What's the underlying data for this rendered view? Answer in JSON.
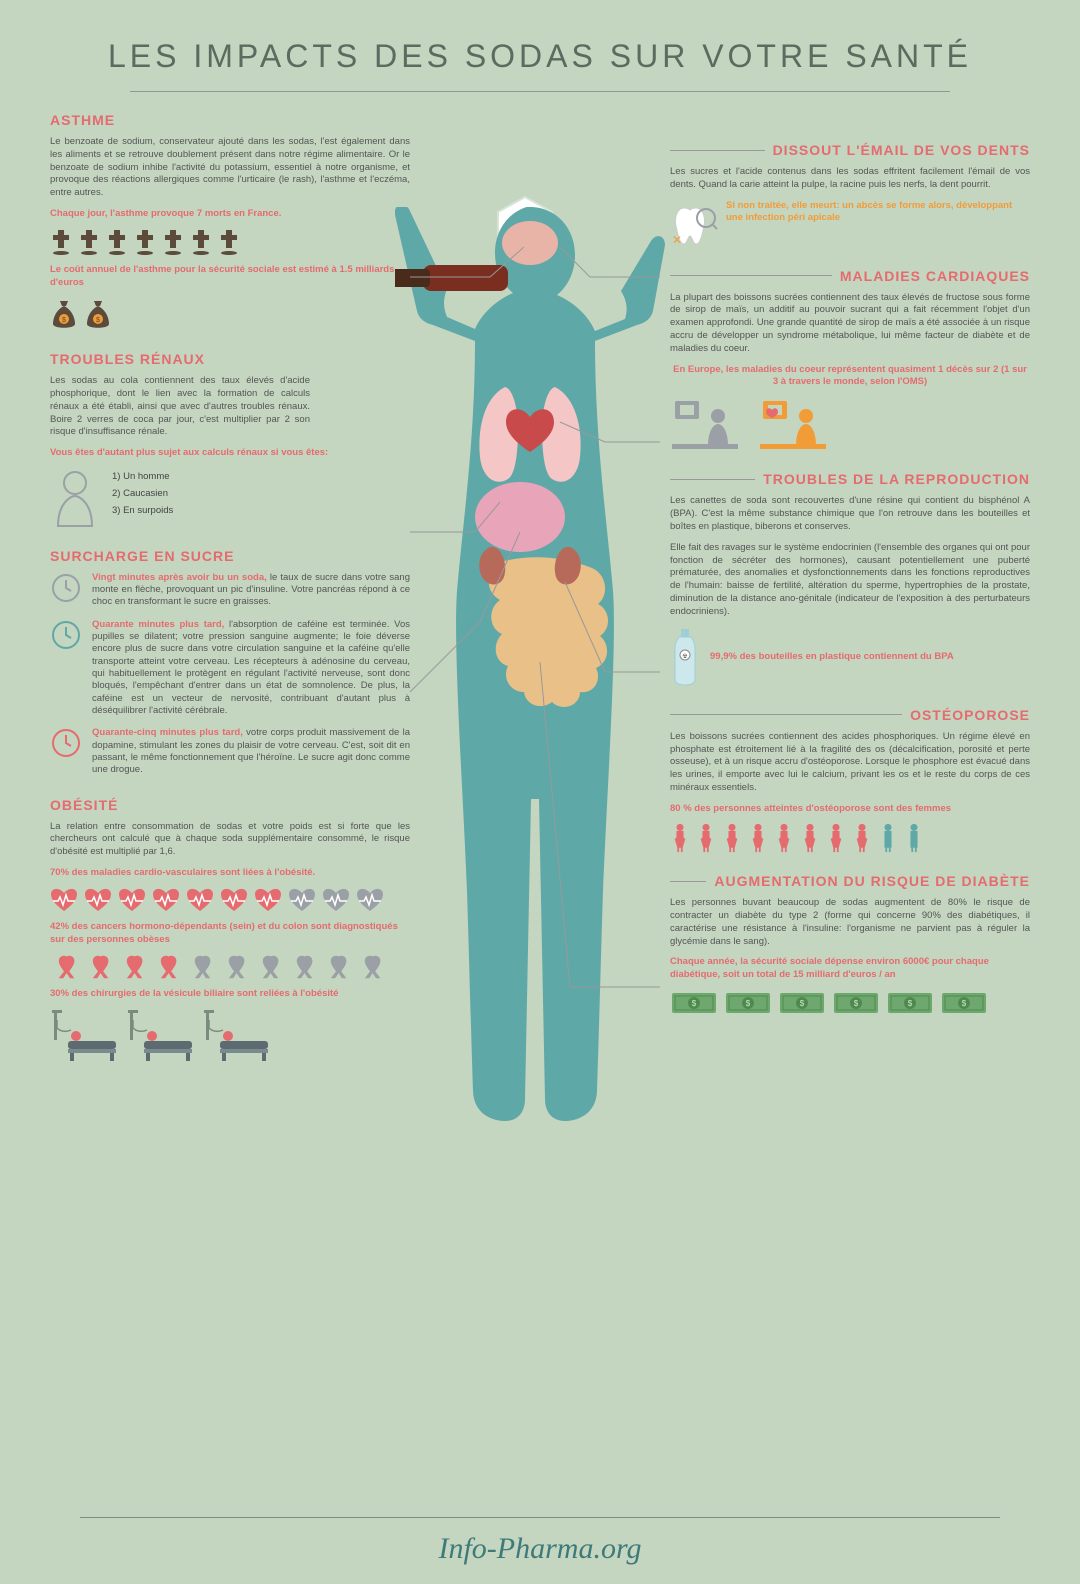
{
  "title": "LES IMPACTS DES SODAS SUR VOTRE SANTÉ",
  "footer": "Info-Pharma.org",
  "colors": {
    "bg": "#c4d5c0",
    "title": "#5a6b5f",
    "pink": "#e56b6f",
    "teal": "#3e7a7a",
    "text": "#555555",
    "orange": "#f29c38",
    "gray": "#9aa0a6",
    "darkbrown": "#5c4a3a",
    "green": "#6fa86f",
    "blue_teal": "#5fa8a8"
  },
  "left": {
    "asthme": {
      "title": "ASTHME",
      "body": "Le benzoate de sodium, conservateur ajouté dans les sodas, l'est également dans les aliments et se retrouve doublement présent dans notre régime alimentaire. Or le benzoate de sodium inhibe l'activité du potassium, essentiel à notre organisme, et provoque des réactions allergiques comme l'urticaire (le rash), l'asthme et l'eczéma, entre autres.",
      "stat1": "Chaque jour, l'asthme provoque 7 morts en France.",
      "crosses": 7,
      "stat2": "Le coût annuel de l'asthme pour la sécurité sociale est estimé à 1.5 milliards d'euros",
      "bags": 2
    },
    "renaux": {
      "title": "TROUBLES RÉNAUX",
      "body": "Les sodas au cola contiennent des taux élevés d'acide phosphorique, dont le lien avec la formation de calculs rénaux a été établi, ainsi que avec d'autres troubles rénaux. Boire 2 verres de coca par jour, c'est multiplier par 2 son risque d'insuffisance rénale.",
      "stat": "Vous êtes d'autant plus sujet aux calculs rénaux si vous êtes:",
      "list": [
        "1) Un homme",
        "2) Caucasien",
        "3) En surpoids"
      ]
    },
    "sucre": {
      "title": "SURCHARGE EN SUCRE",
      "t1_lead": "Vingt minutes après avoir bu un soda,",
      "t1": " le taux de sucre dans votre sang monte en flèche, provoquant un pic d'insuline. Votre pancréas répond à ce choc en transformant le sucre en graisses.",
      "t2_lead": "Quarante minutes plus tard,",
      "t2": " l'absorption de caféine est terminée. Vos pupilles se dilatent; votre pression sanguine augmente; le foie déverse encore plus de sucre dans votre circulation sanguine et la caféine qu'elle transporte atteint votre cerveau. Les récepteurs à adénosine du cerveau, qui habituellement le protègent en régulant l'activité nerveuse, sont donc bloqués, l'empêchant d'entrer dans un état de somnolence. De plus, la caféine est un vecteur de nervosité, contribuant d'autant plus à déséquilibrer l'activité cérébrale.",
      "t3_lead": "Quarante-cinq minutes plus tard,",
      "t3": " votre corps produit massivement de la dopamine, stimulant les zones du plaisir de votre cerveau. C'est, soit dit en passant, le même fonctionnement que l'héroïne. Le sucre agit donc comme une drogue."
    },
    "obesite": {
      "title": "OBÉSITÉ",
      "body": "La relation entre consommation de sodas et votre poids est si forte que les chercheurs ont calculé que à chaque soda supplémentaire consommé, le risque d'obésité est multiplié par 1,6.",
      "stat1": "70% des maladies cardio-vasculaires sont liées à l'obésité.",
      "hearts_pink": 7,
      "hearts_gray": 3,
      "stat2": "42% des cancers hormono-dépendants (sein) et du colon sont diagnostiqués sur des personnes obèses",
      "ribbons_pink": 4,
      "ribbons_gray": 6,
      "stat3": "30% des chirurgies de la vésicule biliaire sont reliées à l'obésité",
      "beds": 3
    }
  },
  "right": {
    "dents": {
      "title": "DISSOUT L'ÉMAIL DE VOS DENTS",
      "body": "Les sucres et l'acide contenus dans les sodas effritent facilement l'émail de vos dents. Quand la carie atteint la pulpe, la racine puis les nerfs, la dent pourrit.",
      "highlight": "Si non traitée, elle meurt: un abcès se forme alors, développant une infection péri apicale"
    },
    "cardiaque": {
      "title": "MALADIES CARDIAQUES",
      "body": "La plupart des boissons sucrées contiennent des taux élevés de fructose sous forme de sirop de maïs, un additif au pouvoir sucrant qui a fait récemment l'objet d'un examen approfondi. Une grande quantité de sirop de maïs a été associée à un risque accru de développer un syndrome métabolique, lui même facteur de diabète et de maladies du coeur.",
      "stat": "En Europe, les maladies du coeur représentent quasiment 1 décès sur 2 (1 sur 3 à travers le monde, selon l'OMS)"
    },
    "reproduction": {
      "title": "TROUBLES DE LA REPRODUCTION",
      "body1": "Les canettes de soda sont recouvertes d'une résine qui contient du bisphénol A (BPA). C'est la même substance chimique que l'on retrouve dans les bouteilles et boîtes en plastique, biberons et conserves.",
      "body2": "Elle fait des ravages sur le système endocrinien (l'ensemble des organes qui ont pour fonction de sécréter des hormones), causant potentiellement une puberté prématurée, des anomalies et dysfonctionnements dans les fonctions reproductives de l'humain: baisse de fertilité, altération du sperme, hypertrophies de la prostate, diminution de la distance ano-génitale (indicateur de l'exposition à des perturbateurs endocriniens).",
      "stat": "99,9% des bouteilles en plastique contiennent du BPA"
    },
    "osteo": {
      "title": "OSTÉOPOROSE",
      "body": "Les boissons sucrées contiennent des acides phosphoriques. Un régime élevé en phosphate est étroitement lié à la fragilité des os (décalcification, porosité et perte osseuse), et à un risque accru d'ostéoporose. Lorsque le phosphore est évacué dans les urines, il emporte avec lui le calcium, privant les os et le reste du corps de ces minéraux essentiels.",
      "stat": "80 % des personnes atteintes d'ostéoporose sont des femmes",
      "women": 8,
      "men": 2
    },
    "diabete": {
      "title": "AUGMENTATION DU RISQUE DE DIABÈTE",
      "body": "Les personnes buvant beaucoup de sodas augmentent de 80% le risque de contracter un diabète du type 2 (forme qui concerne 90% des diabétiques, il caractérise une résistance à l'insuline: l'organisme ne parvient pas à réguler la glycémie dans le sang).",
      "stat": "Chaque année, la sécurité sociale dépense environ 6000€ pour chaque diabétique, soit un total de 15 milliard d'euros / an",
      "bills": 6
    }
  }
}
